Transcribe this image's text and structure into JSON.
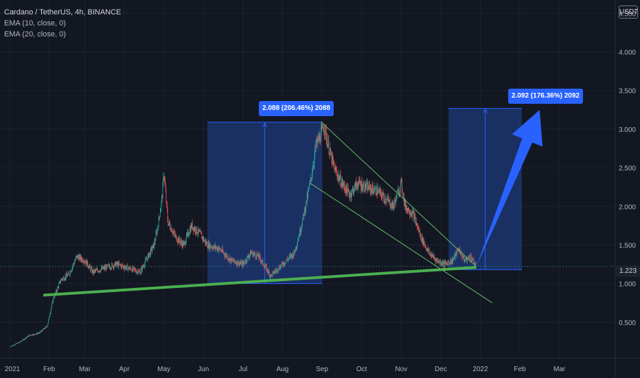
{
  "header": {
    "symbol_line": "Cardano / TetherUS, 4h, BINANCE",
    "indicators": [
      "EMA (10, close, 0)",
      "EMA (20, close, 0)"
    ]
  },
  "price_scale_button": "USDT",
  "current_price_label": "1.223",
  "measure_annotations": [
    {
      "text": "2.088 (206.46%) 2088"
    },
    {
      "text": "2.092 (176.36%) 2092"
    }
  ],
  "colors": {
    "background": "#131722",
    "up": "#26a69a",
    "down": "#ef5350",
    "support_line": "#4caf50",
    "channel": "#66bb6a",
    "measure_fill": "#1e3a78",
    "measure_accent": "#2962ff",
    "arrow": "#2962ff"
  },
  "chart_data": {
    "type": "candlestick",
    "title": "Cardano / TetherUS, 4h, BINANCE",
    "y_tick_labels": [
      "0.500",
      "1.000",
      "1.500",
      "2.000",
      "2.500",
      "3.000",
      "3.500",
      "4.000",
      "4.500"
    ],
    "y_ticks": [
      0.5,
      1.0,
      1.5,
      2.0,
      2.5,
      3.0,
      3.5,
      4.0,
      4.5
    ],
    "ylim": [
      0.1,
      4.55
    ],
    "x_tick_labels": [
      "2021",
      "Feb",
      "Mar",
      "Apr",
      "May",
      "Jun",
      "Jul",
      "Aug",
      "Sep",
      "Oct",
      "Nov",
      "Dec",
      "2022",
      "Feb",
      "Mar"
    ],
    "x_ticks": [
      0,
      1,
      1.9,
      2.9,
      3.9,
      4.9,
      5.9,
      6.9,
      7.9,
      8.9,
      9.9,
      10.9,
      11.9,
      12.9,
      13.9
    ],
    "xlim": [
      0,
      14.5
    ],
    "price_path": [
      [
        0.0,
        0.18
      ],
      [
        0.25,
        0.24
      ],
      [
        0.5,
        0.33
      ],
      [
        0.75,
        0.36
      ],
      [
        0.95,
        0.45
      ],
      [
        1.1,
        0.8
      ],
      [
        1.3,
        1.05
      ],
      [
        1.5,
        1.12
      ],
      [
        1.7,
        1.35
      ],
      [
        1.9,
        1.3
      ],
      [
        2.1,
        1.15
      ],
      [
        2.4,
        1.2
      ],
      [
        2.7,
        1.25
      ],
      [
        3.0,
        1.2
      ],
      [
        3.3,
        1.15
      ],
      [
        3.5,
        1.35
      ],
      [
        3.65,
        1.5
      ],
      [
        3.75,
        1.75
      ],
      [
        3.85,
        2.1
      ],
      [
        3.9,
        2.45
      ],
      [
        4.0,
        1.8
      ],
      [
        4.2,
        1.6
      ],
      [
        4.4,
        1.5
      ],
      [
        4.6,
        1.75
      ],
      [
        4.8,
        1.65
      ],
      [
        5.0,
        1.5
      ],
      [
        5.3,
        1.45
      ],
      [
        5.6,
        1.3
      ],
      [
        5.9,
        1.25
      ],
      [
        6.1,
        1.4
      ],
      [
        6.3,
        1.35
      ],
      [
        6.6,
        1.1
      ],
      [
        6.8,
        1.2
      ],
      [
        7.0,
        1.3
      ],
      [
        7.2,
        1.4
      ],
      [
        7.4,
        1.8
      ],
      [
        7.6,
        2.3
      ],
      [
        7.75,
        2.8
      ],
      [
        7.85,
        2.9
      ],
      [
        7.95,
        3.05
      ],
      [
        8.05,
        2.8
      ],
      [
        8.2,
        2.5
      ],
      [
        8.4,
        2.3
      ],
      [
        8.6,
        2.15
      ],
      [
        8.8,
        2.3
      ],
      [
        9.0,
        2.25
      ],
      [
        9.3,
        2.2
      ],
      [
        9.5,
        2.1
      ],
      [
        9.7,
        2.0
      ],
      [
        9.9,
        2.3
      ],
      [
        10.0,
        2.0
      ],
      [
        10.2,
        1.9
      ],
      [
        10.4,
        1.6
      ],
      [
        10.6,
        1.4
      ],
      [
        10.8,
        1.3
      ],
      [
        11.0,
        1.25
      ],
      [
        11.2,
        1.3
      ],
      [
        11.35,
        1.45
      ],
      [
        11.5,
        1.3
      ],
      [
        11.65,
        1.35
      ],
      [
        11.8,
        1.22
      ]
    ],
    "drawings": {
      "support_line": {
        "from": [
          0.85,
          0.85
        ],
        "to": [
          11.8,
          1.21
        ],
        "color": "#4caf50"
      },
      "channel_upper": {
        "from": [
          7.9,
          3.08
        ],
        "to": [
          11.8,
          1.22
        ]
      },
      "channel_lower": {
        "from": [
          7.6,
          2.3
        ],
        "to": [
          12.2,
          0.75
        ]
      },
      "measure_1": {
        "x_range": [
          5.0,
          7.9
        ],
        "y_range": [
          1.0,
          3.09
        ],
        "label": "2.088 (206.46%) 2088"
      },
      "measure_2": {
        "x_range": [
          11.1,
          12.95
        ],
        "y_range": [
          1.18,
          3.27
        ],
        "label": "2.092 (176.36%) 2092"
      },
      "projection_arrow": {
        "from": [
          11.8,
          1.22
        ],
        "to": [
          13.4,
          3.25
        ]
      },
      "last_price_line": 1.223
    }
  }
}
